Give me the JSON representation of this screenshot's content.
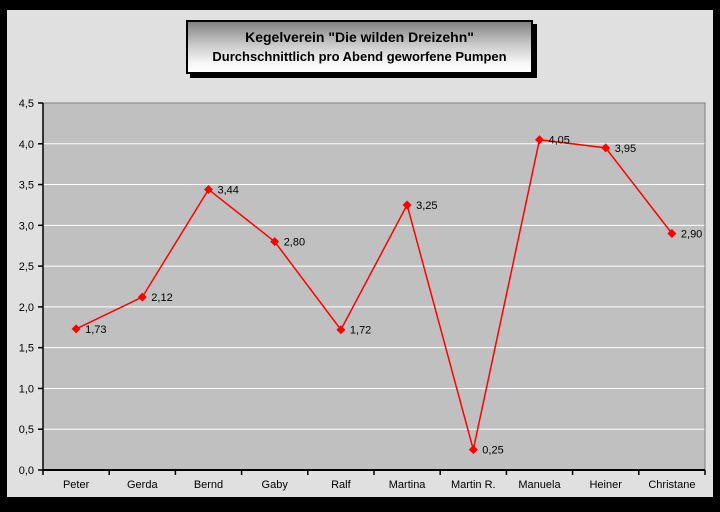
{
  "title_box": {
    "line1": "Kegelverein \"Die wilden Dreizehn\"",
    "line2": "Durchschnittlich pro Abend geworfene Pumpen"
  },
  "chart_data": {
    "type": "line",
    "title": "Kegelverein \"Die wilden Dreizehn\"",
    "subtitle": "Durchschnittlich pro Abend geworfene Pumpen",
    "categories": [
      "Peter",
      "Gerda",
      "Bernd",
      "Gaby",
      "Ralf",
      "Martina",
      "Martin R.",
      "Manuela",
      "Heiner",
      "Christane"
    ],
    "values": [
      1.73,
      2.12,
      3.44,
      2.8,
      1.72,
      3.25,
      0.25,
      4.05,
      3.95,
      2.9
    ],
    "value_labels": [
      "1,73",
      "2,12",
      "3,44",
      "2,80",
      "1,72",
      "3,25",
      "0,25",
      "4,05",
      "3,95",
      "2,90"
    ],
    "xlabel": "",
    "ylabel": "",
    "ylim": [
      0,
      4.5
    ],
    "y_step": 0.5,
    "y_tick_labels": [
      "0,0",
      "0,5",
      "1,0",
      "1,5",
      "2,0",
      "2,5",
      "3,0",
      "3,5",
      "4,0",
      "4,5"
    ],
    "grid": true,
    "legend": "none",
    "marker": "diamond",
    "colors": {
      "series": "#FF0000",
      "plot_bg": "#C0C0C0",
      "chart_bg": "#E0E0E0",
      "gridline": "#FFFFFF",
      "plot_border": "#808080",
      "axis": "#000000",
      "label_text": "#000000",
      "frame": "#000000"
    }
  }
}
